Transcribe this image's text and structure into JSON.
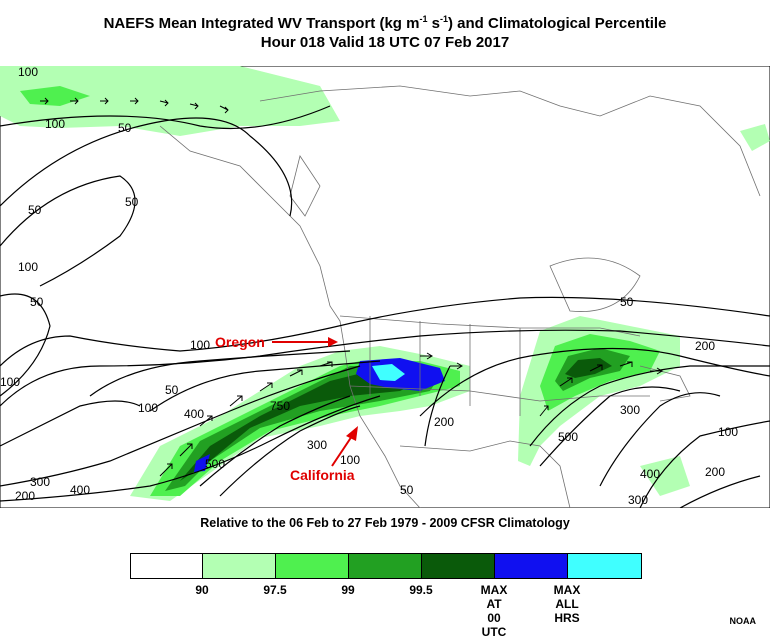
{
  "title": {
    "line1_a": "NAEFS Mean Integrated WV Transport (kg m",
    "line1_sup1": "-1",
    "line1_b": " s",
    "line1_sup2": "-1",
    "line1_c": ") and Climatological Percentile",
    "line2": "Hour 018 Valid 18 UTC 07 Feb 2017"
  },
  "subtitle": "Relative to the 06 Feb to 27 Feb 1979 - 2009 CFSR Climatology",
  "annotations": {
    "oregon": "Oregon",
    "california": "California"
  },
  "contour_labels": [
    "100",
    "100",
    "50",
    "50",
    "50",
    "100",
    "50",
    "100",
    "50",
    "100",
    "50",
    "100",
    "400",
    "750",
    "500",
    "300",
    "300",
    "200",
    "400",
    "100",
    "200",
    "50",
    "200",
    "500",
    "300",
    "100",
    "200",
    "400",
    "300"
  ],
  "legend": {
    "labels": [
      "90",
      "97.5",
      "99",
      "99.5",
      "MAX AT 00 UTC",
      "MAX ALL HRS"
    ],
    "label_lines": [
      [
        "90"
      ],
      [
        "97.5"
      ],
      [
        "99"
      ],
      [
        "99.5"
      ],
      [
        "MAX",
        "AT",
        "00 UTC"
      ],
      [
        "MAX",
        "ALL",
        "HRS"
      ]
    ],
    "colors": [
      "#ffffff",
      "#b3ffb3",
      "#4ff04f",
      "#22a022",
      "#0a5a0a",
      "#1010f0",
      "#40ffff"
    ]
  },
  "credit": "NOAA",
  "colors": {
    "percentile_90": "#b3ffb3",
    "percentile_97_5": "#4ff04f",
    "percentile_99": "#22a022",
    "percentile_99_5": "#0a5a0a",
    "max_00utc": "#1010f0",
    "max_all": "#40ffff",
    "annotation": "#e00000"
  }
}
